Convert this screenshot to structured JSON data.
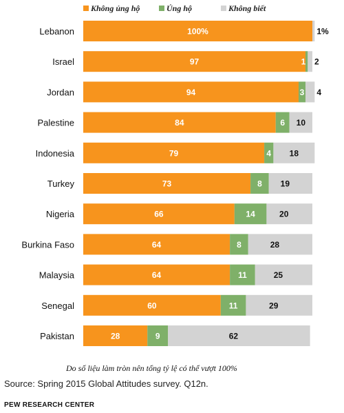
{
  "chart_data": {
    "type": "bar",
    "orientation": "horizontal",
    "stacked": true,
    "legend_position": "top",
    "categories": [
      "Lebanon",
      "Israel",
      "Jordan",
      "Palestine",
      "Indonesia",
      "Turkey",
      "Nigeria",
      "Burkina Faso",
      "Malaysia",
      "Senegal",
      "Pakistan"
    ],
    "series": [
      {
        "name": "Không ủng hộ",
        "color": "#F7941D",
        "values": [
          100,
          97,
          94,
          84,
          79,
          73,
          66,
          64,
          64,
          60,
          28
        ]
      },
      {
        "name": "Ủng hộ",
        "color": "#7FB069",
        "values": [
          0,
          1,
          3,
          6,
          4,
          8,
          14,
          8,
          11,
          11,
          9
        ]
      },
      {
        "name": "Không biết",
        "color": "#D3D3D3",
        "values": [
          1,
          2,
          4,
          10,
          18,
          19,
          20,
          28,
          25,
          29,
          62
        ]
      }
    ],
    "value_labels": [
      [
        "100%",
        "",
        "1%"
      ],
      [
        "97",
        "1",
        "2"
      ],
      [
        "94",
        "3",
        "4"
      ],
      [
        "84",
        "6",
        "10"
      ],
      [
        "79",
        "4",
        "18"
      ],
      [
        "73",
        "8",
        "19"
      ],
      [
        "66",
        "14",
        "20"
      ],
      [
        "64",
        "8",
        "28"
      ],
      [
        "64",
        "11",
        "25"
      ],
      [
        "60",
        "11",
        "29"
      ],
      [
        "28",
        "9",
        "62"
      ]
    ],
    "xlim": [
      0,
      100
    ],
    "grid": false
  },
  "note": "Do số liệu làm tròn nên tổng tỷ lệ có thể vượt 100%",
  "source": "Source: Spring 2015 Global Attitudes survey. Q12n.",
  "credit": "PEW RESEARCH CENTER"
}
